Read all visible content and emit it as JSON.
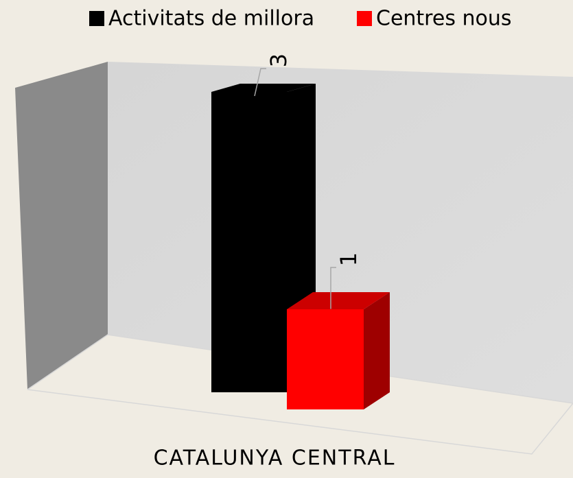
{
  "chart_data": {
    "type": "bar3d",
    "categories": [
      "CATALUNYA CENTRAL"
    ],
    "series": [
      {
        "name": "Activitats de millora",
        "color": "#000000",
        "values": [
          3
        ]
      },
      {
        "name": "Centres nous",
        "color": "#ff0000",
        "values": [
          1
        ]
      }
    ],
    "legend": "top"
  }
}
